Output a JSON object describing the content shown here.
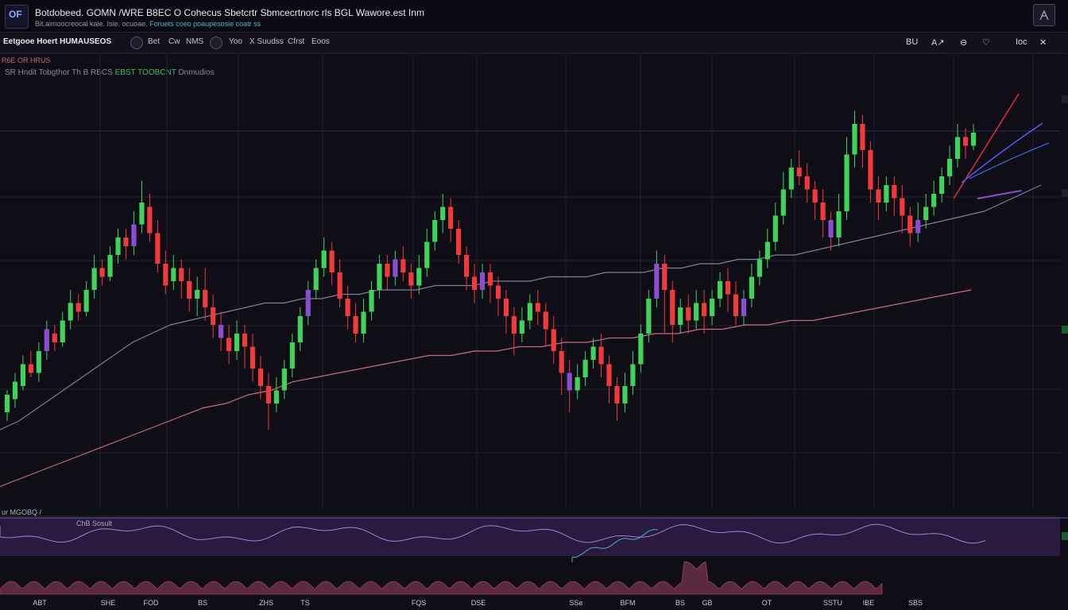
{
  "header": {
    "logo": "OF",
    "title": "Botdobeed. GOMN /WRE B8EC O Cohecus Sbetcrtr Sbmcecrtnorc rls BGL Wawore.est Inm",
    "subtitle_prefix": "Bit.aimoocreocal kaie. Isie. ocuoae.",
    "subtitle_highlight": "Foruets coeo poaupesosie coatr ss"
  },
  "toolbar": {
    "symbol": "Eetgooe Hoert HUMAUSEOS",
    "items": [
      "Bet",
      "Cw",
      "NMS",
      "Yoo",
      "X Suudss",
      "Cfrst",
      "Eoos"
    ],
    "right_tools": [
      "BU",
      "A↗",
      "⊖",
      "♡",
      "Ioc",
      "✕"
    ]
  },
  "chart_header": {
    "line1": "R6E OR HRUS",
    "line2_prefix": "SR Hndit Tobgthor Th",
    "line2_mid": "B RBCS",
    "line2_green": "EBST TOOBCNT",
    "line2_suffix": "Dnmudios"
  },
  "indicator": {
    "label": "ur MGOBQ /",
    "sublabel": "ChB Sosult"
  },
  "x_axis_labels": [
    "ABT",
    "SHE",
    "FOD",
    "BS",
    "ZHS",
    "TS",
    "FQS",
    "DSE",
    "SSe",
    "BFM",
    "BS",
    "GB",
    "OT",
    "SSTU",
    "IBE",
    "SBS"
  ],
  "colors": {
    "up": "#3fd35a",
    "down": "#f23a3a",
    "accent": "#8a4fd0",
    "ma_fast": "#7d7da0",
    "ma_slow": "#c86a86"
  },
  "chart_data": {
    "type": "candlestick",
    "title": "",
    "xlabel": "",
    "ylabel": "",
    "ylim": [
      0,
      100
    ],
    "grid": true,
    "candles": [
      [
        22,
        26,
        20,
        27
      ],
      [
        25,
        29,
        23,
        31
      ],
      [
        28,
        33,
        27,
        35
      ],
      [
        33,
        31,
        30,
        36
      ],
      [
        31,
        36,
        29,
        38
      ],
      [
        36,
        41,
        34,
        43
      ],
      [
        40,
        38,
        36,
        42
      ],
      [
        38,
        43,
        37,
        45
      ],
      [
        43,
        47,
        41,
        50
      ],
      [
        47,
        45,
        43,
        49
      ],
      [
        45,
        50,
        44,
        52
      ],
      [
        50,
        55,
        48,
        58
      ],
      [
        55,
        53,
        51,
        57
      ],
      [
        53,
        58,
        52,
        60
      ],
      [
        58,
        62,
        56,
        64
      ],
      [
        62,
        60,
        57,
        64
      ],
      [
        60,
        65,
        58,
        68
      ],
      [
        65,
        70,
        63,
        75
      ],
      [
        69,
        63,
        61,
        72
      ],
      [
        63,
        56,
        54,
        66
      ],
      [
        56,
        51,
        49,
        59
      ],
      [
        52,
        55,
        50,
        58
      ],
      [
        55,
        52,
        48,
        57
      ],
      [
        52,
        48,
        45,
        55
      ],
      [
        48,
        50,
        44,
        53
      ],
      [
        50,
        46,
        43,
        55
      ],
      [
        46,
        42,
        39,
        49
      ],
      [
        42,
        39,
        36,
        45
      ],
      [
        39,
        36,
        33,
        42
      ],
      [
        36,
        40,
        34,
        43
      ],
      [
        40,
        37,
        32,
        42
      ],
      [
        37,
        32,
        29,
        40
      ],
      [
        32,
        28,
        25,
        35
      ],
      [
        28,
        24,
        18,
        31
      ],
      [
        24,
        27,
        22,
        30
      ],
      [
        27,
        32,
        25,
        34
      ],
      [
        32,
        38,
        30,
        40
      ],
      [
        38,
        44,
        36,
        46
      ],
      [
        44,
        50,
        42,
        52
      ],
      [
        50,
        55,
        48,
        57
      ],
      [
        55,
        59,
        53,
        62
      ],
      [
        59,
        54,
        51,
        61
      ],
      [
        54,
        48,
        46,
        57
      ],
      [
        48,
        44,
        41,
        51
      ],
      [
        44,
        40,
        38,
        47
      ],
      [
        40,
        45,
        38,
        48
      ],
      [
        45,
        50,
        43,
        52
      ],
      [
        50,
        56,
        48,
        58
      ],
      [
        56,
        53,
        50,
        58
      ],
      [
        53,
        57,
        51,
        59
      ],
      [
        57,
        54,
        52,
        60
      ],
      [
        54,
        51,
        48,
        56
      ],
      [
        51,
        55,
        49,
        58
      ],
      [
        55,
        61,
        53,
        64
      ],
      [
        61,
        66,
        59,
        68
      ],
      [
        66,
        69,
        63,
        72
      ],
      [
        69,
        64,
        61,
        71
      ],
      [
        64,
        58,
        56,
        66
      ],
      [
        58,
        53,
        50,
        60
      ],
      [
        53,
        50,
        47,
        56
      ],
      [
        50,
        54,
        48,
        56
      ],
      [
        54,
        51,
        47,
        56
      ],
      [
        51,
        48,
        44,
        53
      ],
      [
        48,
        44,
        40,
        50
      ],
      [
        44,
        40,
        35,
        46
      ],
      [
        40,
        43,
        38,
        46
      ],
      [
        43,
        47,
        41,
        49
      ],
      [
        47,
        45,
        42,
        50
      ],
      [
        45,
        41,
        37,
        47
      ],
      [
        41,
        36,
        33,
        44
      ],
      [
        36,
        31,
        26,
        39
      ],
      [
        31,
        27,
        22,
        34
      ],
      [
        27,
        30,
        25,
        33
      ],
      [
        30,
        34,
        28,
        36
      ],
      [
        34,
        37,
        32,
        39
      ],
      [
        37,
        33,
        30,
        40
      ],
      [
        33,
        28,
        24,
        35
      ],
      [
        28,
        24,
        20,
        30
      ],
      [
        24,
        28,
        22,
        31
      ],
      [
        28,
        33,
        26,
        36
      ],
      [
        33,
        40,
        31,
        42
      ],
      [
        40,
        48,
        38,
        50
      ],
      [
        48,
        56,
        46,
        59
      ],
      [
        56,
        50,
        40,
        58
      ],
      [
        50,
        42,
        38,
        52
      ],
      [
        42,
        46,
        40,
        48
      ],
      [
        46,
        43,
        40,
        49
      ],
      [
        43,
        47,
        41,
        50
      ],
      [
        47,
        44,
        40,
        50
      ],
      [
        44,
        48,
        42,
        50
      ],
      [
        48,
        52,
        46,
        54
      ],
      [
        52,
        49,
        45,
        55
      ],
      [
        49,
        44,
        42,
        52
      ],
      [
        44,
        48,
        42,
        50
      ],
      [
        48,
        53,
        46,
        56
      ],
      [
        53,
        57,
        51,
        59
      ],
      [
        57,
        61,
        55,
        64
      ],
      [
        61,
        67,
        59,
        70
      ],
      [
        67,
        73,
        65,
        77
      ],
      [
        73,
        78,
        71,
        80
      ],
      [
        78,
        76,
        74,
        82
      ],
      [
        76,
        73,
        70,
        79
      ],
      [
        73,
        70,
        66,
        75
      ],
      [
        70,
        66,
        62,
        73
      ],
      [
        66,
        62,
        59,
        68
      ],
      [
        62,
        68,
        60,
        72
      ],
      [
        68,
        81,
        66,
        85
      ],
      [
        81,
        88,
        78,
        91
      ],
      [
        88,
        82,
        78,
        90
      ],
      [
        82,
        73,
        70,
        84
      ],
      [
        73,
        70,
        66,
        76
      ],
      [
        70,
        74,
        68,
        76
      ],
      [
        74,
        71,
        67,
        76
      ],
      [
        71,
        67,
        63,
        74
      ],
      [
        67,
        63,
        60,
        69
      ],
      [
        63,
        66,
        61,
        70
      ],
      [
        66,
        69,
        64,
        72
      ],
      [
        69,
        72,
        67,
        75
      ],
      [
        72,
        76,
        70,
        78
      ],
      [
        76,
        80,
        74,
        83
      ],
      [
        80,
        85,
        78,
        88
      ],
      [
        85,
        83,
        80,
        87
      ],
      [
        83,
        86,
        82,
        88
      ]
    ],
    "ma_fast": [
      18,
      20,
      23,
      26,
      29,
      32,
      35,
      38,
      40,
      42,
      43,
      44,
      45,
      46,
      47,
      47,
      48,
      48,
      49,
      49,
      50,
      50,
      50,
      51,
      51,
      51,
      52,
      52,
      52,
      53,
      53,
      53,
      54,
      54,
      54,
      55,
      55,
      56,
      56,
      57,
      57,
      58,
      58,
      59,
      60,
      61,
      62,
      63,
      64,
      65,
      66,
      67,
      68,
      70,
      72,
      74
    ],
    "ma_slow": [
      5,
      7,
      9,
      11,
      13,
      15,
      17,
      19,
      21,
      23,
      24,
      26,
      27,
      29,
      30,
      31,
      32,
      33,
      34,
      35,
      35,
      36,
      36,
      37,
      37,
      38,
      38,
      39,
      39,
      40,
      40,
      41,
      41,
      42,
      42,
      43,
      43,
      44,
      45,
      46,
      47,
      48,
      49,
      50
    ]
  }
}
